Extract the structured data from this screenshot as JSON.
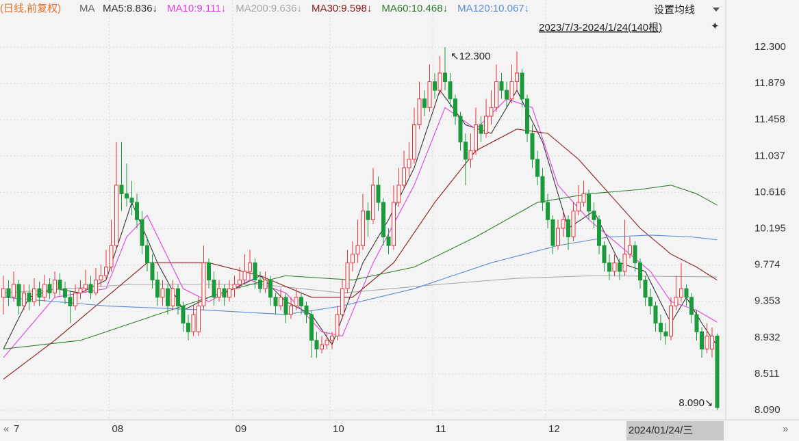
{
  "header": {
    "mode": "(日线,前复权)",
    "ma": "MA",
    "setting": "设置均线",
    "range": "2023/7/3-2024/1/24(140根)",
    "cursor_date": "2024/01/24/三"
  },
  "chart_data": {
    "type": "candlestick",
    "ylim": [
      7.995,
      12.53
    ],
    "yticks": [
      {
        "value": 12.3,
        "label": "12.300"
      },
      11.879,
      11.458,
      11.037,
      10.616,
      10.195,
      9.774,
      9.353,
      8.932,
      8.511,
      {
        "value": 8.09,
        "label": "8.090"
      }
    ],
    "grid": true,
    "up_color": "#e8353a",
    "down_color": "#1a9a3a",
    "months": [
      "7",
      "08",
      "09",
      "10",
      "11",
      "12"
    ],
    "month_start_index": [
      0,
      21,
      45,
      64,
      84,
      106
    ],
    "annotations": [
      {
        "text": "↖12.300",
        "index": 86,
        "value": 12.3
      },
      {
        "text": "8.090↘",
        "index": 139,
        "value": 8.09
      }
    ],
    "ohlc": [
      [
        9.4,
        9.65,
        9.2,
        9.5
      ],
      [
        9.5,
        9.6,
        9.3,
        9.4
      ],
      [
        9.4,
        9.7,
        9.35,
        9.55
      ],
      [
        9.55,
        9.6,
        9.2,
        9.3
      ],
      [
        9.3,
        9.55,
        9.25,
        9.45
      ],
      [
        9.45,
        9.55,
        9.25,
        9.35
      ],
      [
        9.35,
        9.62,
        9.3,
        9.5
      ],
      [
        9.5,
        9.58,
        9.3,
        9.4
      ],
      [
        9.4,
        9.66,
        9.35,
        9.55
      ],
      [
        9.55,
        9.62,
        9.38,
        9.45
      ],
      [
        9.45,
        9.7,
        9.4,
        9.6
      ],
      [
        9.6,
        9.68,
        9.42,
        9.5
      ],
      [
        9.5,
        9.58,
        9.32,
        9.4
      ],
      [
        9.4,
        9.48,
        9.1,
        9.3
      ],
      [
        9.3,
        9.55,
        9.25,
        9.45
      ],
      [
        9.45,
        9.6,
        9.38,
        9.5
      ],
      [
        9.5,
        9.72,
        9.45,
        9.55
      ],
      [
        9.55,
        9.65,
        9.38,
        9.45
      ],
      [
        9.45,
        9.74,
        9.42,
        9.6
      ],
      [
        9.6,
        9.78,
        9.52,
        9.65
      ],
      [
        9.65,
        9.95,
        9.6,
        9.75
      ],
      [
        9.75,
        10.3,
        9.7,
        10.0
      ],
      [
        10.0,
        11.2,
        9.95,
        10.7
      ],
      [
        10.7,
        11.2,
        10.4,
        10.6
      ],
      [
        10.6,
        10.95,
        10.45,
        10.55
      ],
      [
        10.55,
        10.75,
        10.35,
        10.5
      ],
      [
        10.5,
        10.6,
        10.2,
        10.3
      ],
      [
        10.3,
        10.4,
        9.9,
        10.0
      ],
      [
        10.0,
        10.1,
        9.7,
        9.8
      ],
      [
        9.8,
        9.9,
        9.5,
        9.6
      ],
      [
        9.6,
        9.7,
        9.3,
        9.4
      ],
      [
        9.4,
        9.6,
        9.3,
        9.5
      ],
      [
        9.5,
        9.55,
        9.2,
        9.3
      ],
      [
        9.3,
        9.6,
        9.25,
        9.5
      ],
      [
        9.5,
        9.55,
        9.2,
        9.3
      ],
      [
        9.3,
        9.35,
        9.0,
        9.1
      ],
      [
        9.1,
        9.2,
        8.9,
        9.0
      ],
      [
        9.0,
        9.3,
        8.95,
        9.2
      ],
      [
        9.0,
        9.4,
        8.95,
        9.3
      ],
      [
        9.3,
        10.0,
        9.25,
        9.8
      ],
      [
        9.8,
        9.85,
        9.5,
        9.6
      ],
      [
        9.6,
        9.7,
        9.3,
        9.4
      ],
      [
        9.4,
        9.6,
        9.35,
        9.5
      ],
      [
        9.5,
        9.55,
        9.3,
        9.4
      ],
      [
        9.4,
        9.6,
        9.35,
        9.5
      ],
      [
        9.5,
        9.65,
        9.4,
        9.55
      ],
      [
        9.55,
        9.75,
        9.5,
        9.6
      ],
      [
        9.6,
        9.9,
        9.55,
        9.7
      ],
      [
        9.7,
        9.95,
        9.6,
        9.8
      ],
      [
        9.8,
        9.85,
        9.5,
        9.6
      ],
      [
        9.6,
        9.7,
        9.45,
        9.5
      ],
      [
        9.5,
        9.7,
        9.45,
        9.6
      ],
      [
        9.6,
        9.65,
        9.3,
        9.4
      ],
      [
        9.4,
        9.45,
        9.2,
        9.3
      ],
      [
        9.3,
        9.5,
        9.25,
        9.4
      ],
      [
        9.4,
        9.45,
        9.1,
        9.2
      ],
      [
        9.2,
        9.4,
        9.15,
        9.3
      ],
      [
        9.3,
        9.5,
        9.25,
        9.4
      ],
      [
        9.4,
        9.45,
        9.2,
        9.3
      ],
      [
        9.3,
        9.35,
        9.1,
        9.2
      ],
      [
        9.2,
        9.25,
        8.7,
        8.9
      ],
      [
        8.9,
        9.0,
        8.7,
        8.8
      ],
      [
        8.8,
        8.95,
        8.75,
        8.85
      ],
      [
        8.85,
        9.0,
        8.8,
        8.9
      ],
      [
        8.9,
        9.0,
        8.8,
        8.95
      ],
      [
        8.95,
        9.3,
        8.9,
        9.2
      ],
      [
        9.2,
        9.6,
        9.15,
        9.5
      ],
      [
        9.5,
        9.95,
        9.45,
        9.8
      ],
      [
        9.8,
        10.05,
        9.7,
        9.9
      ],
      [
        9.9,
        10.3,
        9.8,
        10.0
      ],
      [
        10.0,
        10.6,
        9.95,
        10.4
      ],
      [
        10.4,
        10.5,
        10.1,
        10.3
      ],
      [
        10.3,
        10.9,
        10.25,
        10.7
      ],
      [
        10.7,
        10.8,
        10.4,
        10.5
      ],
      [
        10.5,
        10.55,
        10.0,
        10.1
      ],
      [
        10.1,
        10.2,
        9.9,
        10.0
      ],
      [
        10.0,
        10.7,
        9.95,
        10.5
      ],
      [
        10.5,
        10.9,
        10.45,
        10.7
      ],
      [
        10.7,
        11.1,
        10.65,
        10.9
      ],
      [
        10.9,
        11.2,
        10.8,
        11.0
      ],
      [
        11.0,
        11.6,
        10.95,
        11.4
      ],
      [
        11.4,
        11.9,
        11.35,
        11.7
      ],
      [
        11.7,
        11.8,
        11.5,
        11.6
      ],
      [
        11.6,
        12.1,
        11.55,
        11.9
      ],
      [
        11.9,
        12.0,
        11.7,
        11.8
      ],
      [
        11.8,
        12.2,
        11.75,
        12.0
      ],
      [
        12.0,
        12.3,
        11.8,
        11.9
      ],
      [
        11.9,
        12.0,
        11.6,
        11.7
      ],
      [
        11.7,
        11.75,
        11.4,
        11.5
      ],
      [
        11.5,
        11.55,
        11.1,
        11.2
      ],
      [
        11.2,
        11.3,
        10.7,
        11.0
      ],
      [
        11.0,
        11.3,
        10.9,
        11.1
      ],
      [
        11.1,
        11.6,
        11.05,
        11.4
      ],
      [
        11.4,
        11.5,
        11.2,
        11.3
      ],
      [
        11.3,
        11.7,
        11.25,
        11.5
      ],
      [
        11.5,
        11.8,
        11.4,
        11.6
      ],
      [
        11.6,
        12.1,
        11.55,
        11.9
      ],
      [
        11.9,
        12.0,
        11.7,
        11.8
      ],
      [
        11.8,
        11.9,
        11.6,
        11.7
      ],
      [
        11.7,
        12.1,
        11.65,
        11.9
      ],
      [
        11.9,
        12.25,
        11.8,
        12.0
      ],
      [
        12.0,
        12.05,
        11.6,
        11.7
      ],
      [
        11.7,
        11.75,
        11.2,
        11.3
      ],
      [
        11.3,
        11.4,
        10.9,
        11.0
      ],
      [
        11.0,
        11.1,
        10.7,
        10.8
      ],
      [
        10.8,
        10.9,
        10.4,
        10.5
      ],
      [
        10.5,
        10.6,
        10.2,
        10.3
      ],
      [
        10.3,
        10.35,
        9.9,
        10.0
      ],
      [
        10.0,
        10.3,
        9.95,
        10.2
      ],
      [
        10.2,
        10.4,
        10.1,
        10.3
      ],
      [
        10.3,
        10.35,
        9.95,
        10.1
      ],
      [
        10.1,
        10.5,
        10.05,
        10.4
      ],
      [
        10.4,
        10.7,
        10.35,
        10.5
      ],
      [
        10.5,
        10.75,
        10.45,
        10.6
      ],
      [
        10.6,
        10.65,
        10.3,
        10.4
      ],
      [
        10.4,
        10.5,
        10.2,
        10.3
      ],
      [
        10.3,
        10.35,
        9.9,
        10.0
      ],
      [
        10.0,
        10.05,
        9.7,
        9.8
      ],
      [
        9.8,
        9.9,
        9.6,
        9.7
      ],
      [
        9.7,
        9.9,
        9.65,
        9.8
      ],
      [
        9.8,
        9.85,
        9.6,
        9.7
      ],
      [
        9.7,
        10.3,
        9.65,
        9.9
      ],
      [
        9.9,
        10.1,
        9.85,
        10.0
      ],
      [
        10.0,
        10.05,
        9.7,
        9.8
      ],
      [
        9.8,
        9.85,
        9.5,
        9.6
      ],
      [
        9.6,
        9.65,
        9.3,
        9.4
      ],
      [
        9.4,
        9.5,
        9.2,
        9.3
      ],
      [
        9.3,
        9.35,
        9.0,
        9.1
      ],
      [
        9.1,
        9.2,
        8.9,
        9.0
      ],
      [
        9.0,
        9.1,
        8.85,
        8.95
      ],
      [
        8.95,
        9.4,
        8.9,
        9.3
      ],
      [
        9.3,
        9.65,
        9.25,
        9.4
      ],
      [
        9.4,
        9.8,
        9.35,
        9.5
      ],
      [
        9.5,
        9.55,
        9.3,
        9.4
      ],
      [
        9.4,
        9.45,
        9.1,
        9.2
      ],
      [
        9.2,
        9.25,
        8.9,
        9.0
      ],
      [
        9.0,
        9.05,
        8.7,
        8.8
      ],
      [
        8.8,
        9.1,
        8.75,
        8.95
      ],
      [
        8.8,
        9.05,
        8.7,
        8.95
      ],
      [
        8.95,
        8.98,
        8.09,
        8.12
      ]
    ],
    "series": [
      {
        "name": "MA5:8.836↓",
        "color": "#333333",
        "x": [
          0,
          5,
          10,
          15,
          20,
          25,
          30,
          35,
          40,
          45,
          50,
          55,
          60,
          64,
          70,
          75,
          80,
          85,
          90,
          95,
          100,
          105,
          110,
          115,
          120,
          125,
          130,
          133,
          136,
          139
        ],
        "values": [
          8.8,
          9.4,
          9.5,
          9.45,
          9.6,
          10.5,
          9.8,
          9.25,
          9.4,
          9.5,
          9.65,
          9.35,
          9.2,
          8.85,
          9.8,
          10.3,
          10.9,
          11.8,
          11.4,
          11.3,
          11.8,
          11.2,
          10.2,
          10.4,
          9.8,
          9.7,
          9.1,
          9.4,
          9.1,
          8.836
        ]
      },
      {
        "name": "MA10:9.111↓",
        "color": "#e040e0",
        "x": [
          0,
          10,
          20,
          24,
          28,
          35,
          40,
          48,
          55,
          62,
          66,
          72,
          80,
          86,
          92,
          98,
          103,
          108,
          114,
          120,
          126,
          130,
          135,
          139
        ],
        "values": [
          8.7,
          9.4,
          9.5,
          10.1,
          10.35,
          9.5,
          9.35,
          9.6,
          9.45,
          9.0,
          8.95,
          9.8,
          10.7,
          11.6,
          11.35,
          11.7,
          11.6,
          10.7,
          10.3,
          10.0,
          9.7,
          9.35,
          9.25,
          9.111
        ]
      },
      {
        "name": "MA200:9.636↓",
        "color": "#a8a8a8",
        "x": [
          0,
          25,
          50,
          66,
          85,
          100,
          115,
          139
        ],
        "values": [
          9.45,
          9.55,
          9.55,
          9.45,
          9.55,
          9.62,
          9.65,
          9.636
        ]
      },
      {
        "name": "MA30:9.598↓",
        "color": "#8b1a1a",
        "x": [
          0,
          10,
          20,
          28,
          40,
          50,
          60,
          68,
          76,
          84,
          92,
          100,
          106,
          112,
          118,
          124,
          130,
          135,
          139
        ],
        "values": [
          8.45,
          8.9,
          9.4,
          9.8,
          9.8,
          9.65,
          9.4,
          9.4,
          9.8,
          10.5,
          11.1,
          11.35,
          11.3,
          11.0,
          10.6,
          10.2,
          9.9,
          9.75,
          9.598
        ]
      },
      {
        "name": "MA60:10.468↓",
        "color": "#2e7d2e",
        "x": [
          0,
          15,
          30,
          45,
          55,
          68,
          80,
          92,
          104,
          114,
          124,
          130,
          135,
          139
        ],
        "values": [
          8.8,
          8.9,
          9.2,
          9.5,
          9.65,
          9.6,
          9.75,
          10.1,
          10.5,
          10.6,
          10.65,
          10.7,
          10.6,
          10.468
        ]
      },
      {
        "name": "MA120:10.067↓",
        "color": "#5b8bd0",
        "x": [
          0,
          20,
          40,
          55,
          66,
          80,
          95,
          108,
          118,
          126,
          134,
          139
        ],
        "values": [
          9.4,
          9.3,
          9.25,
          9.2,
          9.3,
          9.5,
          9.8,
          10.0,
          10.1,
          10.12,
          10.1,
          10.067
        ]
      }
    ]
  }
}
